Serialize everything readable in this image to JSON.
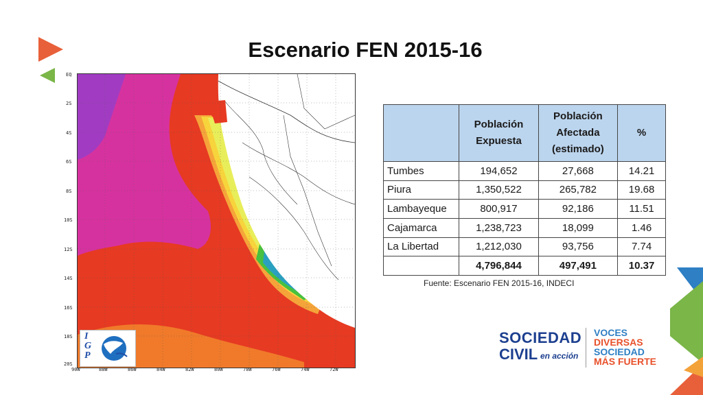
{
  "slide": {
    "title": "Escenario FEN 2015-16"
  },
  "map": {
    "lat_labels": [
      "EQ",
      "2S",
      "4S",
      "6S",
      "8S",
      "10S",
      "12S",
      "14S",
      "16S",
      "18S",
      "20S"
    ],
    "lon_labels": [
      "90W",
      "88W",
      "86W",
      "84W",
      "82W",
      "80W",
      "78W",
      "76W",
      "74W",
      "72W"
    ],
    "logo_letters": [
      "I",
      "G",
      "P"
    ]
  },
  "table": {
    "headers": [
      "",
      "Población Expuesta",
      "Población Afectada (estimado)",
      "%"
    ],
    "rows": [
      {
        "name": "Tumbes",
        "expuesta": "194,652",
        "afectada": "27,668",
        "pct": "14.21"
      },
      {
        "name": "Piura",
        "expuesta": "1,350,522",
        "afectada": "265,782",
        "pct": "19.68"
      },
      {
        "name": "Lambayeque",
        "expuesta": "800,917",
        "afectada": "92,186",
        "pct": "11.51"
      },
      {
        "name": "Cajamarca",
        "expuesta": "1,238,723",
        "afectada": "18,099",
        "pct": "1.46"
      },
      {
        "name": "La Libertad",
        "expuesta": "1,212,030",
        "afectada": "93,756",
        "pct": "7.74"
      }
    ],
    "total": {
      "name": "",
      "expuesta": "4,796,844",
      "afectada": "497,491",
      "pct": "10.37"
    }
  },
  "source_text": "Fuente: Escenario FEN 2015-16, INDECI",
  "branding": {
    "sociedad": "SOCIEDAD",
    "civil": "CIVIL",
    "en_accion": "en acción",
    "voces": "VOCES",
    "diversas": "DIVERSAS",
    "sociedad2": "SOCIEDAD",
    "mas_fuerte": "MÁS FUERTE"
  },
  "colors": {
    "brand_blue": "#1c3f8f",
    "brand_orange": "#e8502a",
    "table_header": "#bcd5ee",
    "accent_orange": "#e8603a",
    "accent_green": "#7ab648"
  }
}
